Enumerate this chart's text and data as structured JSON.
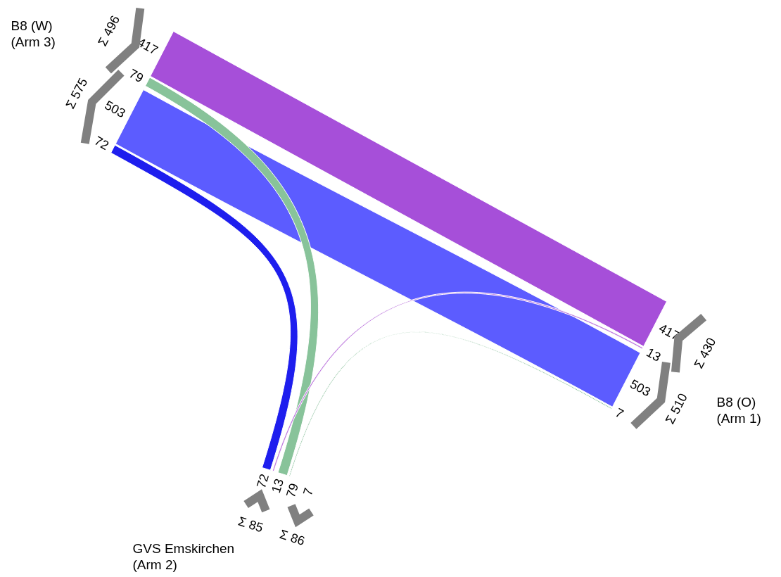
{
  "chart_data": {
    "type": "other",
    "data_labels": true,
    "categories": [
      "B8 (W)\n(Arm 3)",
      "B8 (O)\n(Arm 1)",
      "GVS Emskirchen\n(Arm 2)"
    ],
    "series": [
      {
        "color": "#a64fd9",
        "values": [
          417,
          417,
          null
        ]
      },
      {
        "color": "#88c39a",
        "values": [
          79,
          null,
          79
        ]
      },
      {
        "color": "#5c5cff",
        "values": [
          503,
          503,
          null
        ]
      },
      {
        "color": "#1e1eee",
        "values": [
          72,
          null,
          72
        ]
      },
      {
        "color": "#c07ee0",
        "values": [
          null,
          13,
          13
        ]
      },
      {
        "color": "#3d9a5c",
        "values": [
          null,
          7,
          7
        ]
      }
    ],
    "annotations": [
      "Σ 496",
      "Σ 575",
      "Σ 430",
      "Σ 510",
      "Σ 85",
      "Σ 86"
    ]
  }
}
